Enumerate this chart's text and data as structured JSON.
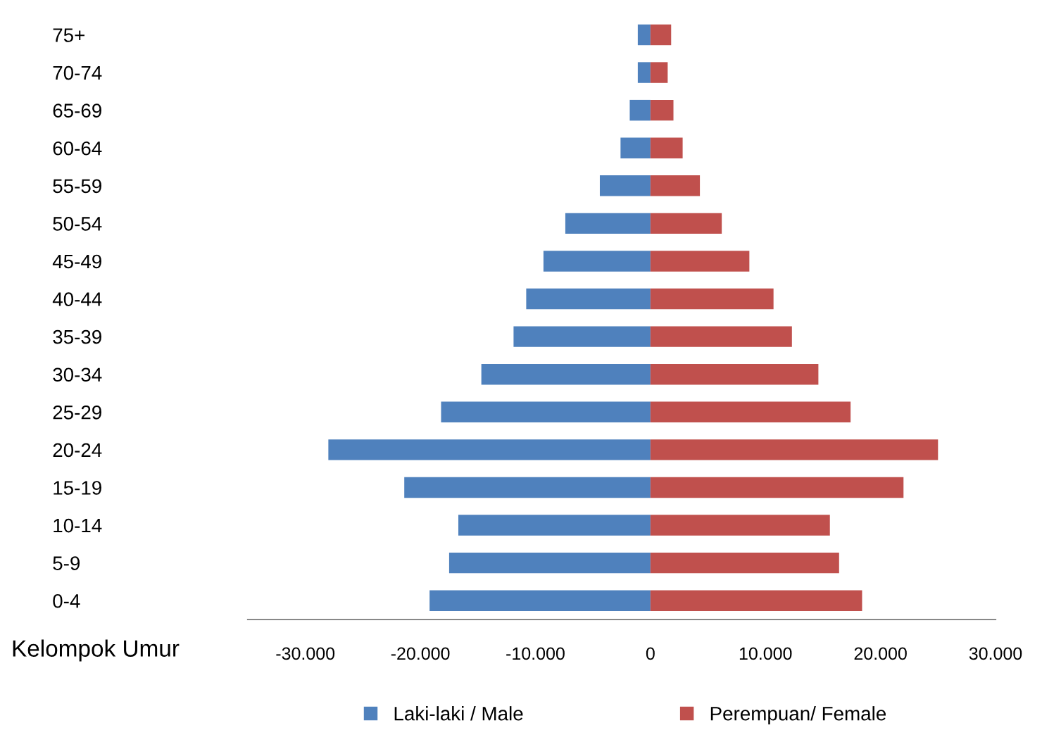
{
  "chart_data": {
    "type": "bar",
    "orientation": "horizontal",
    "ylabel": "Kelompok Umur",
    "categories": [
      "75+",
      "70-74",
      "65-69",
      "60-64",
      "55-59",
      "50-54",
      "45-49",
      "40-44",
      "35-39",
      "30-34",
      "25-29",
      "20-24",
      "15-19",
      "10-14",
      "5-9",
      "0-4"
    ],
    "series": [
      {
        "name": "Laki-laki / Male",
        "color": "#4f81bd",
        "values": [
          -1100,
          -1100,
          -1800,
          -2600,
          -4400,
          -7400,
          -9300,
          -10800,
          -11900,
          -14700,
          -18200,
          -28000,
          -21400,
          -16700,
          -17500,
          -19200
        ]
      },
      {
        "name": "Perempuan/ Female",
        "color": "#c0504d",
        "values": [
          1800,
          1500,
          2000,
          2800,
          4300,
          6200,
          8600,
          10700,
          12300,
          14600,
          17400,
          25000,
          22000,
          15600,
          16400,
          18400
        ]
      }
    ],
    "xlim": [
      -35000,
      30000
    ],
    "xticks": [
      {
        "value": -30000,
        "label": "-30.000"
      },
      {
        "value": -20000,
        "label": "-20.000"
      },
      {
        "value": -10000,
        "label": "-10.000"
      },
      0,
      {
        "value": 10000,
        "label": "10.000"
      },
      {
        "value": 20000,
        "label": "20.000"
      },
      {
        "value": 30000,
        "label": "30.000"
      }
    ],
    "grid": false,
    "legend": "bottom",
    "stacked": true
  }
}
